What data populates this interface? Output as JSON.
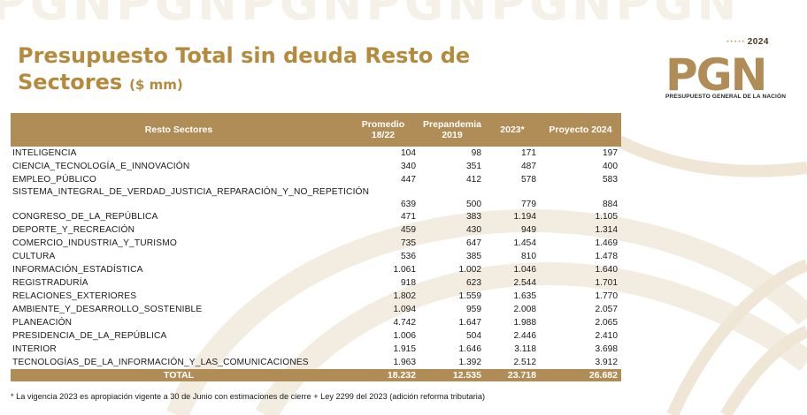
{
  "title": {
    "main": "Presupuesto Total sin deuda Resto de Sectores",
    "unit": "($ mm)"
  },
  "logo": {
    "year": "2024",
    "mark": "PGN",
    "subtitle": "PRESUPUESTO GENERAL DE LA NACIÓN"
  },
  "colors": {
    "gold": "#b08d57",
    "title_gold": "#b68a3c",
    "background_watermark": "#f3ece1"
  },
  "table": {
    "headers": {
      "sector": "Resto Sectores",
      "avg": "Promedio 18/22",
      "pre": "Prepandemia 2019",
      "y2023": "2023*",
      "y2024": "Proyecto 2024"
    },
    "rows": [
      {
        "name": "INTELIGENCIA",
        "avg": "104",
        "pre": "98",
        "y2023": "171",
        "y2024": "197"
      },
      {
        "name": "CIENCIA_TECNOLOGÍA_E_INNOVACIÓN",
        "avg": "340",
        "pre": "351",
        "y2023": "487",
        "y2024": "400"
      },
      {
        "name": "EMPLEO_PÚBLICO",
        "avg": "447",
        "pre": "412",
        "y2023": "578",
        "y2024": "583"
      },
      {
        "name": "SISTEMA_INTEGRAL_DE_VERDAD_JUSTICIA_REPARACIÓN_Y_NO_REPETICIÓN",
        "avg": "639",
        "pre": "500",
        "y2023": "779",
        "y2024": "884"
      },
      {
        "name": "CONGRESO_DE_LA_REPÚBLICA",
        "avg": "471",
        "pre": "383",
        "y2023": "1.194",
        "y2024": "1.105"
      },
      {
        "name": "DEPORTE_Y_RECREACIÓN",
        "avg": "459",
        "pre": "430",
        "y2023": "949",
        "y2024": "1.314"
      },
      {
        "name": "COMERCIO_INDUSTRIA_Y_TURISMO",
        "avg": "735",
        "pre": "647",
        "y2023": "1.454",
        "y2024": "1.469"
      },
      {
        "name": "CULTURA",
        "avg": "536",
        "pre": "385",
        "y2023": "810",
        "y2024": "1.478"
      },
      {
        "name": "INFORMACIÓN_ESTADÍSTICA",
        "avg": "1.061",
        "pre": "1.002",
        "y2023": "1.046",
        "y2024": "1.640"
      },
      {
        "name": "REGISTRADURÍA",
        "avg": "918",
        "pre": "623",
        "y2023": "2.544",
        "y2024": "1.701"
      },
      {
        "name": "RELACIONES_EXTERIORES",
        "avg": "1.802",
        "pre": "1.559",
        "y2023": "1.635",
        "y2024": "1.770"
      },
      {
        "name": "AMBIENTE_Y_DESARROLLO_SOSTENIBLE",
        "avg": "1.094",
        "pre": "959",
        "y2023": "2.008",
        "y2024": "2.057"
      },
      {
        "name": "PLANEACIÓN",
        "avg": "4.742",
        "pre": "1.647",
        "y2023": "1.988",
        "y2024": "2.065"
      },
      {
        "name": "PRESIDENCIA_DE_LA_REPÚBLICA",
        "avg": "1.006",
        "pre": "504",
        "y2023": "2.446",
        "y2024": "2.410"
      },
      {
        "name": "INTERIOR",
        "avg": "1.915",
        "pre": "1.646",
        "y2023": "3.118",
        "y2024": "3.698"
      },
      {
        "name": "TECNOLOGÍAS_DE_LA_INFORMACIÓN_Y_LAS_COMUNICACIONES",
        "avg": "1.963",
        "pre": "1.392",
        "y2023": "2.512",
        "y2024": "3.912"
      }
    ],
    "total": {
      "label": "TOTAL",
      "avg": "18.232",
      "pre": "12.535",
      "y2023": "23.718",
      "y2024": "26.682"
    }
  },
  "footnote": "* La vigencia 2023 es apropiación vigente a 30 de Junio con estimaciones de cierre + Ley 2299 del 2023 (adición reforma tributaria)"
}
